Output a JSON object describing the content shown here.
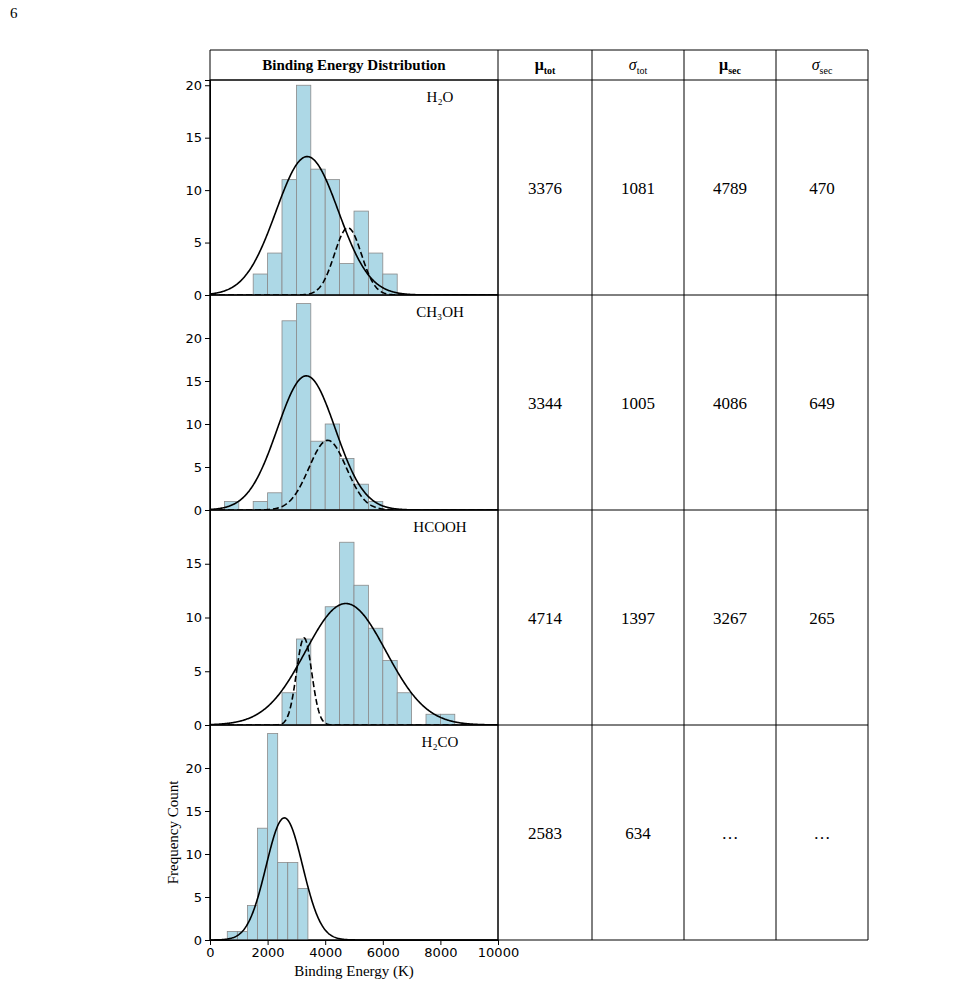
{
  "page_number": "6",
  "table": {
    "header": [
      "Binding Energy Distribution",
      "μtot",
      "σtot",
      "μsec",
      "σsec"
    ],
    "rows": [
      [
        3376,
        1081,
        4789,
        470
      ],
      [
        3344,
        1005,
        4086,
        649
      ],
      [
        4714,
        1397,
        3267,
        265
      ],
      [
        2583,
        634,
        "…",
        "…"
      ]
    ]
  },
  "chart_data": [
    {
      "type": "histogram",
      "title": "H₂O",
      "color": "#add8e6",
      "bins": [
        1500,
        2000,
        2500,
        3000,
        3500,
        4000,
        4500,
        5000,
        5500,
        6000,
        6500
      ],
      "counts": [
        2,
        4,
        11,
        20,
        12,
        11,
        3,
        8,
        4,
        2
      ],
      "fits": [
        {
          "peak": 13.2,
          "line_style": "solid"
        },
        {
          "peak": 6.4,
          "line_style": "dashed"
        }
      ],
      "xlim": [
        0,
        10000
      ],
      "ylim": [
        0,
        20.5
      ],
      "yticks": [
        0,
        5,
        10,
        15,
        20
      ],
      "tick_labels": "y"
    },
    {
      "type": "histogram",
      "title": "CH₃OH",
      "color": "#add8e6",
      "bins": [
        500,
        1000,
        1500,
        2000,
        2500,
        3000,
        3500,
        4000,
        4500,
        5000,
        5500,
        6000
      ],
      "counts": [
        1,
        0,
        1,
        2,
        22,
        24,
        8,
        10,
        6,
        3,
        1
      ],
      "fits": [
        {
          "peak": 15.6,
          "line_style": "solid"
        },
        {
          "peak": 8.1,
          "line_style": "dashed"
        }
      ],
      "xlim": [
        0,
        10000
      ],
      "ylim": [
        0,
        25
      ],
      "yticks": [
        0,
        5,
        10,
        15,
        20
      ],
      "tick_labels": "y"
    },
    {
      "type": "histogram",
      "title": "HCOOH",
      "color": "#add8e6",
      "bins": [
        2500,
        3000,
        3500,
        4000,
        4500,
        5000,
        5500,
        6000,
        6500,
        7000,
        7500,
        8000,
        8500
      ],
      "counts": [
        3,
        8,
        0,
        11,
        17,
        13,
        9,
        6,
        3,
        0,
        1,
        1
      ],
      "fits": [
        {
          "peak": 11.3,
          "line_style": "solid"
        },
        {
          "peak": 8.1,
          "line_style": "dashed"
        }
      ],
      "xlim": [
        0,
        10000
      ],
      "ylim": [
        0,
        20
      ],
      "yticks": [
        0,
        5,
        10,
        15
      ],
      "tick_labels": "y"
    },
    {
      "type": "histogram",
      "title": "H₂CO",
      "color": "#add8e6",
      "bins": [
        600,
        950,
        1300,
        1650,
        2000,
        2350,
        2700,
        3050,
        3400
      ],
      "counts": [
        1,
        1,
        4,
        13,
        24,
        9,
        9,
        6
      ],
      "fits": [
        {
          "peak": 14.2,
          "line_style": "solid"
        }
      ],
      "xlim": [
        0,
        10000
      ],
      "ylim": [
        0,
        25
      ],
      "yticks": [
        0,
        5,
        10,
        15,
        20
      ],
      "xticks": [
        0,
        2000,
        4000,
        6000,
        8000,
        10000
      ],
      "xlabel": "Binding Energy (K)",
      "ylabel": "Frequency Count"
    }
  ]
}
